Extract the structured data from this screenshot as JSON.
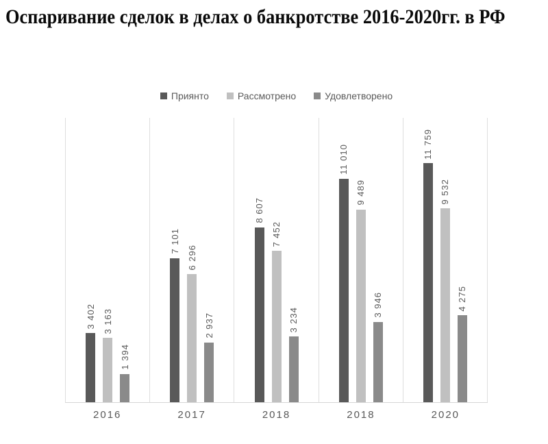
{
  "title": {
    "text": "Оспаривание сделок в делах о банкротстве 2016-2020гг. в РФ",
    "color": "#0a0a0a"
  },
  "legend": {
    "position": "top-center",
    "items": [
      {
        "label": "Приянто",
        "color": "#595959"
      },
      {
        "label": "Рассмотрено",
        "color": "#c0c0c0"
      },
      {
        "label": "Удовлетворено",
        "color": "#8a8a8a"
      }
    ]
  },
  "chart_data": {
    "type": "bar",
    "title": "Оспаривание сделок в делах о банкротстве 2016-2020гг. в РФ",
    "categories": [
      "2016",
      "2017",
      "2018",
      "2018",
      "2020"
    ],
    "series": [
      {
        "name": "Приянто",
        "color": "#595959",
        "values": [
          3402,
          7101,
          8607,
          11010,
          11759
        ],
        "labels": [
          "3 402",
          "7 101",
          "8 607",
          "11 010",
          "11 759"
        ]
      },
      {
        "name": "Рассмотрено",
        "color": "#c0c0c0",
        "values": [
          3163,
          6296,
          7452,
          9489,
          9532
        ],
        "labels": [
          "3 163",
          "6 296",
          "7 452",
          "9 489",
          "9 532"
        ]
      },
      {
        "name": "Удовлетворено",
        "color": "#8a8a8a",
        "values": [
          1394,
          2937,
          3234,
          3946,
          4275
        ],
        "labels": [
          "1 394",
          "2 937",
          "3 234",
          "3 946",
          "4 275"
        ]
      }
    ],
    "xlabel": "",
    "ylabel": "",
    "ylim": [
      0,
      14000
    ],
    "grid": "vertical-category-separators-only",
    "y_axis_ticks_visible": false,
    "data_label_rotation": -90,
    "legend_position": "top"
  },
  "colors": {
    "gridline": "#dedede",
    "axis_line": "#d6d6d6",
    "data_label_text": "#595959",
    "tick_label_text": "#595959"
  }
}
